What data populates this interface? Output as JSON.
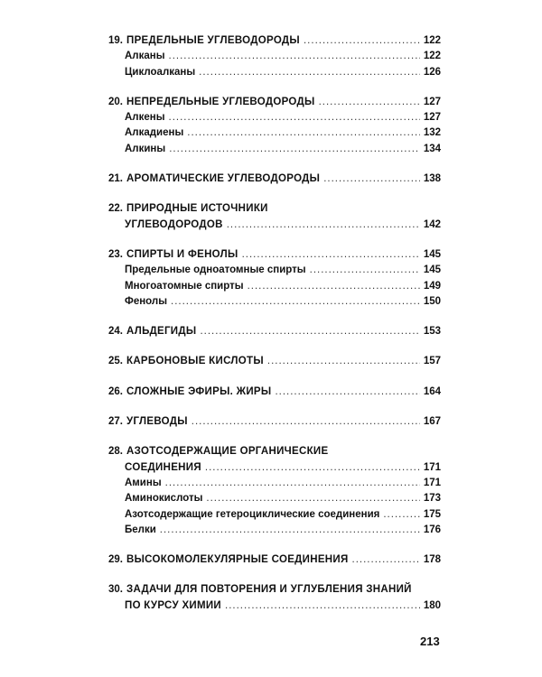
{
  "sections": [
    {
      "num": "19.",
      "title": [
        "ПРЕДЕЛЬНЫЕ УГЛЕВОДОРОДЫ"
      ],
      "page": "122",
      "items": [
        {
          "title": "Алканы",
          "page": "122"
        },
        {
          "title": "Циклоалканы",
          "page": "126"
        }
      ]
    },
    {
      "num": "20.",
      "title": [
        "НЕПРЕДЕЛЬНЫЕ УГЛЕВОДОРОДЫ"
      ],
      "page": "127",
      "items": [
        {
          "title": "Алкены",
          "page": "127"
        },
        {
          "title": "Алкадиены",
          "page": "132"
        },
        {
          "title": "Алкины",
          "page": "134"
        }
      ]
    },
    {
      "num": "21.",
      "title": [
        "АРОМАТИЧЕСКИЕ УГЛЕВОДОРОДЫ"
      ],
      "page": "138",
      "items": []
    },
    {
      "num": "22.",
      "title": [
        "ПРИРОДНЫЕ ИСТОЧНИКИ",
        "УГЛЕВОДОРОДОВ"
      ],
      "page": "142",
      "items": []
    },
    {
      "num": "23.",
      "title": [
        "СПИРТЫ И ФЕНОЛЫ"
      ],
      "page": "145",
      "items": [
        {
          "title": "Предельные одноатомные спирты",
          "page": "145"
        },
        {
          "title": "Многоатомные спирты",
          "page": "149"
        },
        {
          "title": "Фенолы",
          "page": "150"
        }
      ]
    },
    {
      "num": "24.",
      "title": [
        "АЛЬДЕГИДЫ"
      ],
      "page": "153",
      "items": []
    },
    {
      "num": "25.",
      "title": [
        "КАРБОНОВЫЕ КИСЛОТЫ"
      ],
      "page": "157",
      "items": []
    },
    {
      "num": "26.",
      "title": [
        "СЛОЖНЫЕ ЭФИРЫ. ЖИРЫ"
      ],
      "page": "164",
      "items": []
    },
    {
      "num": "27.",
      "title": [
        "УГЛЕВОДЫ"
      ],
      "page": "167",
      "items": []
    },
    {
      "num": "28.",
      "title": [
        "АЗОТСОДЕРЖАЩИЕ ОРГАНИЧЕСКИЕ",
        "СОЕДИНЕНИЯ"
      ],
      "page": "171",
      "items": [
        {
          "title": "Амины",
          "page": "171"
        },
        {
          "title": "Аминокислоты",
          "page": "173"
        },
        {
          "title": "Азотсодержащие гетероциклические соединения",
          "page": "175"
        },
        {
          "title": "Белки",
          "page": "176"
        }
      ]
    },
    {
      "num": "29.",
      "title": [
        "ВЫСОКОМОЛЕКУЛЯРНЫЕ СОЕДИНЕНИЯ"
      ],
      "page": "178",
      "items": []
    },
    {
      "num": "30.",
      "title": [
        "ЗАДАЧИ ДЛЯ ПОВТОРЕНИЯ И УГЛУБЛЕНИЯ ЗНАНИЙ",
        "ПО КУРСУ ХИМИИ"
      ],
      "page": "180",
      "items": []
    }
  ],
  "page_number": "213"
}
